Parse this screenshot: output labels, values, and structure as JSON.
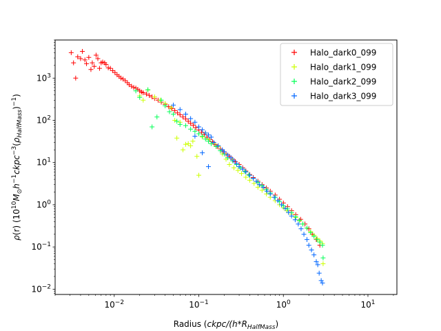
{
  "chart_data": {
    "type": "scatter",
    "title": "",
    "xlabel": "Radius (ckpc/(h*R_HalfMass))",
    "ylabel": "ρ(r) (10^10 M_⊙ h^-1 ckpc^-3 (ρ_HalfMass)^-1)",
    "xscale": "log",
    "yscale": "log",
    "xlim": [
      0.002,
      22
    ],
    "ylim": [
      0.0075,
      8000
    ],
    "x_ticks": [
      0.01,
      0.1,
      1,
      10
    ],
    "x_tick_labels": [
      "10^-2",
      "10^-1",
      "10^0",
      "10^1"
    ],
    "y_ticks": [
      0.01,
      0.1,
      1,
      10,
      100,
      1000
    ],
    "y_tick_labels": [
      "10^-2",
      "10^-1",
      "10^0",
      "10^1",
      "10^2",
      "10^3"
    ],
    "grid": false,
    "legend_position": "upper right",
    "series": [
      {
        "name": "Halo_dark0_099",
        "color": "#ff0000",
        "marker": "+",
        "points": [
          [
            0.0031,
            4000
          ],
          [
            0.0033,
            2300
          ],
          [
            0.0035,
            1000
          ],
          [
            0.0037,
            3200
          ],
          [
            0.004,
            2900
          ],
          [
            0.0042,
            4300
          ],
          [
            0.0045,
            2700
          ],
          [
            0.0047,
            2200
          ],
          [
            0.005,
            3100
          ],
          [
            0.0053,
            1600
          ],
          [
            0.0055,
            2300
          ],
          [
            0.0058,
            1900
          ],
          [
            0.0061,
            3500
          ],
          [
            0.0064,
            2900
          ],
          [
            0.0067,
            1700
          ],
          [
            0.007,
            2300
          ],
          [
            0.0073,
            2400
          ],
          [
            0.0077,
            2300
          ],
          [
            0.008,
            2100
          ],
          [
            0.0085,
            1750
          ],
          [
            0.009,
            1700
          ],
          [
            0.0096,
            1500
          ],
          [
            0.0102,
            1350
          ],
          [
            0.0108,
            1200
          ],
          [
            0.0114,
            1100
          ],
          [
            0.012,
            1000
          ],
          [
            0.0127,
            950
          ],
          [
            0.0135,
            870
          ],
          [
            0.0143,
            780
          ],
          [
            0.015,
            700
          ],
          [
            0.016,
            640
          ],
          [
            0.017,
            600
          ],
          [
            0.018,
            580
          ],
          [
            0.019,
            540
          ],
          [
            0.02,
            500
          ],
          [
            0.021,
            470
          ],
          [
            0.022,
            450
          ],
          [
            0.024,
            420
          ],
          [
            0.026,
            390
          ],
          [
            0.028,
            360
          ],
          [
            0.03,
            330
          ],
          [
            0.033,
            300
          ],
          [
            0.036,
            270
          ],
          [
            0.04,
            240
          ],
          [
            0.044,
            210
          ],
          [
            0.048,
            190
          ],
          [
            0.052,
            170
          ],
          [
            0.056,
            150
          ],
          [
            0.06,
            135
          ],
          [
            0.065,
            120
          ],
          [
            0.07,
            108
          ],
          [
            0.075,
            95
          ],
          [
            0.08,
            85
          ],
          [
            0.086,
            76
          ],
          [
            0.092,
            67
          ],
          [
            0.1,
            59
          ],
          [
            0.108,
            52
          ],
          [
            0.116,
            46
          ],
          [
            0.125,
            40
          ],
          [
            0.135,
            35
          ],
          [
            0.145,
            31
          ],
          [
            0.155,
            27
          ],
          [
            0.165,
            24
          ],
          [
            0.18,
            21
          ],
          [
            0.195,
            18
          ],
          [
            0.21,
            16
          ],
          [
            0.23,
            14
          ],
          [
            0.25,
            12
          ],
          [
            0.27,
            10.5
          ],
          [
            0.3,
            9
          ],
          [
            0.33,
            7.5
          ],
          [
            0.36,
            6.3
          ],
          [
            0.4,
            5.2
          ],
          [
            0.44,
            4.4
          ],
          [
            0.5,
            3.6
          ],
          [
            0.56,
            3.0
          ],
          [
            0.63,
            2.5
          ],
          [
            0.7,
            2.1
          ],
          [
            0.8,
            1.7
          ],
          [
            0.9,
            1.35
          ],
          [
            1.0,
            1.1
          ],
          [
            1.12,
            0.9
          ],
          [
            1.25,
            0.72
          ],
          [
            1.4,
            0.58
          ],
          [
            1.6,
            0.45
          ],
          [
            1.8,
            0.35
          ],
          [
            2.0,
            0.27
          ],
          [
            2.2,
            0.2
          ],
          [
            2.45,
            0.15
          ],
          [
            2.7,
            0.11
          ]
        ]
      },
      {
        "name": "Halo_dark1_099",
        "color": "#ccff00",
        "marker": "+",
        "points": [
          [
            0.02,
            380
          ],
          [
            0.022,
            300
          ],
          [
            0.025,
            520
          ],
          [
            0.03,
            360
          ],
          [
            0.035,
            300
          ],
          [
            0.04,
            250
          ],
          [
            0.047,
            200
          ],
          [
            0.052,
            100
          ],
          [
            0.055,
            38
          ],
          [
            0.06,
            90
          ],
          [
            0.065,
            20
          ],
          [
            0.07,
            27
          ],
          [
            0.075,
            28
          ],
          [
            0.08,
            25
          ],
          [
            0.085,
            32
          ],
          [
            0.095,
            14
          ],
          [
            0.1,
            5
          ],
          [
            0.11,
            40
          ],
          [
            0.12,
            50
          ],
          [
            0.13,
            35
          ],
          [
            0.15,
            28
          ],
          [
            0.17,
            24
          ],
          [
            0.19,
            16
          ],
          [
            0.21,
            12
          ],
          [
            0.23,
            9
          ],
          [
            0.26,
            7.5
          ],
          [
            0.29,
            6.5
          ],
          [
            0.32,
            5.5
          ],
          [
            0.36,
            4.5
          ],
          [
            0.4,
            3.8
          ],
          [
            0.45,
            3.2
          ],
          [
            0.5,
            2.6
          ],
          [
            0.56,
            2.2
          ],
          [
            0.63,
            1.8
          ],
          [
            0.7,
            1.5
          ],
          [
            0.8,
            1.25
          ],
          [
            0.9,
            1.0
          ],
          [
            1.0,
            0.85
          ],
          [
            1.1,
            0.72
          ],
          [
            1.25,
            0.6
          ],
          [
            1.4,
            0.5
          ],
          [
            1.55,
            0.42
          ],
          [
            1.7,
            0.35
          ],
          [
            1.9,
            0.28
          ],
          [
            2.1,
            0.23
          ],
          [
            2.3,
            0.19
          ],
          [
            2.5,
            0.16
          ],
          [
            2.7,
            0.14
          ],
          [
            2.9,
            0.12
          ],
          [
            2.95,
            0.04
          ]
        ]
      },
      {
        "name": "Halo_dark2_099",
        "color": "#00ff55",
        "marker": "+",
        "points": [
          [
            0.018,
            500
          ],
          [
            0.02,
            350
          ],
          [
            0.025,
            530
          ],
          [
            0.028,
            70
          ],
          [
            0.032,
            120
          ],
          [
            0.036,
            300
          ],
          [
            0.04,
            220
          ],
          [
            0.045,
            160
          ],
          [
            0.05,
            140
          ],
          [
            0.055,
            95
          ],
          [
            0.06,
            80
          ],
          [
            0.07,
            75
          ],
          [
            0.08,
            62
          ],
          [
            0.09,
            55
          ],
          [
            0.1,
            48
          ],
          [
            0.11,
            42
          ],
          [
            0.12,
            36
          ],
          [
            0.13,
            32
          ],
          [
            0.14,
            28
          ],
          [
            0.16,
            24
          ],
          [
            0.18,
            19
          ],
          [
            0.2,
            16
          ],
          [
            0.22,
            13
          ],
          [
            0.25,
            11
          ],
          [
            0.28,
            9
          ],
          [
            0.31,
            7.5
          ],
          [
            0.35,
            6.2
          ],
          [
            0.39,
            5.1
          ],
          [
            0.44,
            4.2
          ],
          [
            0.5,
            3.4
          ],
          [
            0.56,
            2.8
          ],
          [
            0.63,
            2.3
          ],
          [
            0.7,
            1.9
          ],
          [
            0.8,
            1.5
          ],
          [
            0.9,
            1.2
          ],
          [
            1.0,
            0.95
          ],
          [
            1.12,
            0.8
          ],
          [
            1.25,
            0.65
          ],
          [
            1.4,
            0.52
          ],
          [
            1.55,
            0.43
          ],
          [
            1.7,
            0.35
          ],
          [
            1.9,
            0.28
          ],
          [
            2.1,
            0.22
          ],
          [
            2.3,
            0.18
          ],
          [
            2.5,
            0.15
          ],
          [
            2.7,
            0.13
          ],
          [
            2.9,
            0.11
          ],
          [
            2.95,
            0.055
          ]
        ]
      },
      {
        "name": "Halo_dark3_099",
        "color": "#0066ff",
        "marker": "+",
        "points": [
          [
            0.05,
            230
          ],
          [
            0.06,
            180
          ],
          [
            0.07,
            140
          ],
          [
            0.08,
            110
          ],
          [
            0.09,
            90
          ],
          [
            0.1,
            70
          ],
          [
            0.11,
            60
          ],
          [
            0.12,
            50
          ],
          [
            0.13,
            45
          ],
          [
            0.14,
            40
          ],
          [
            0.15,
            30
          ],
          [
            0.17,
            25
          ],
          [
            0.19,
            20
          ],
          [
            0.2,
            18
          ],
          [
            0.22,
            15
          ],
          [
            0.24,
            13
          ],
          [
            0.26,
            11
          ],
          [
            0.28,
            9.5
          ],
          [
            0.3,
            8
          ],
          [
            0.33,
            7
          ],
          [
            0.36,
            6
          ],
          [
            0.4,
            5
          ],
          [
            0.44,
            4.2
          ],
          [
            0.48,
            3.6
          ],
          [
            0.52,
            3.0
          ],
          [
            0.58,
            2.6
          ],
          [
            0.64,
            2.1
          ],
          [
            0.7,
            1.8
          ],
          [
            0.78,
            1.5
          ],
          [
            0.86,
            1.25
          ],
          [
            0.95,
            1.0
          ],
          [
            1.05,
            0.82
          ],
          [
            1.15,
            0.66
          ],
          [
            1.25,
            0.54
          ],
          [
            1.38,
            0.44
          ],
          [
            1.5,
            0.35
          ],
          [
            1.62,
            0.27
          ],
          [
            1.75,
            0.2
          ],
          [
            1.9,
            0.15
          ],
          [
            2.0,
            0.11
          ],
          [
            2.15,
            0.085
          ],
          [
            2.3,
            0.065
          ],
          [
            2.45,
            0.045
          ],
          [
            2.55,
            0.038
          ],
          [
            2.65,
            0.024
          ],
          [
            2.8,
            0.016
          ],
          [
            2.9,
            0.014
          ],
          [
            0.09,
            42
          ],
          [
            0.11,
            17
          ],
          [
            0.13,
            8
          ]
        ]
      }
    ]
  }
}
